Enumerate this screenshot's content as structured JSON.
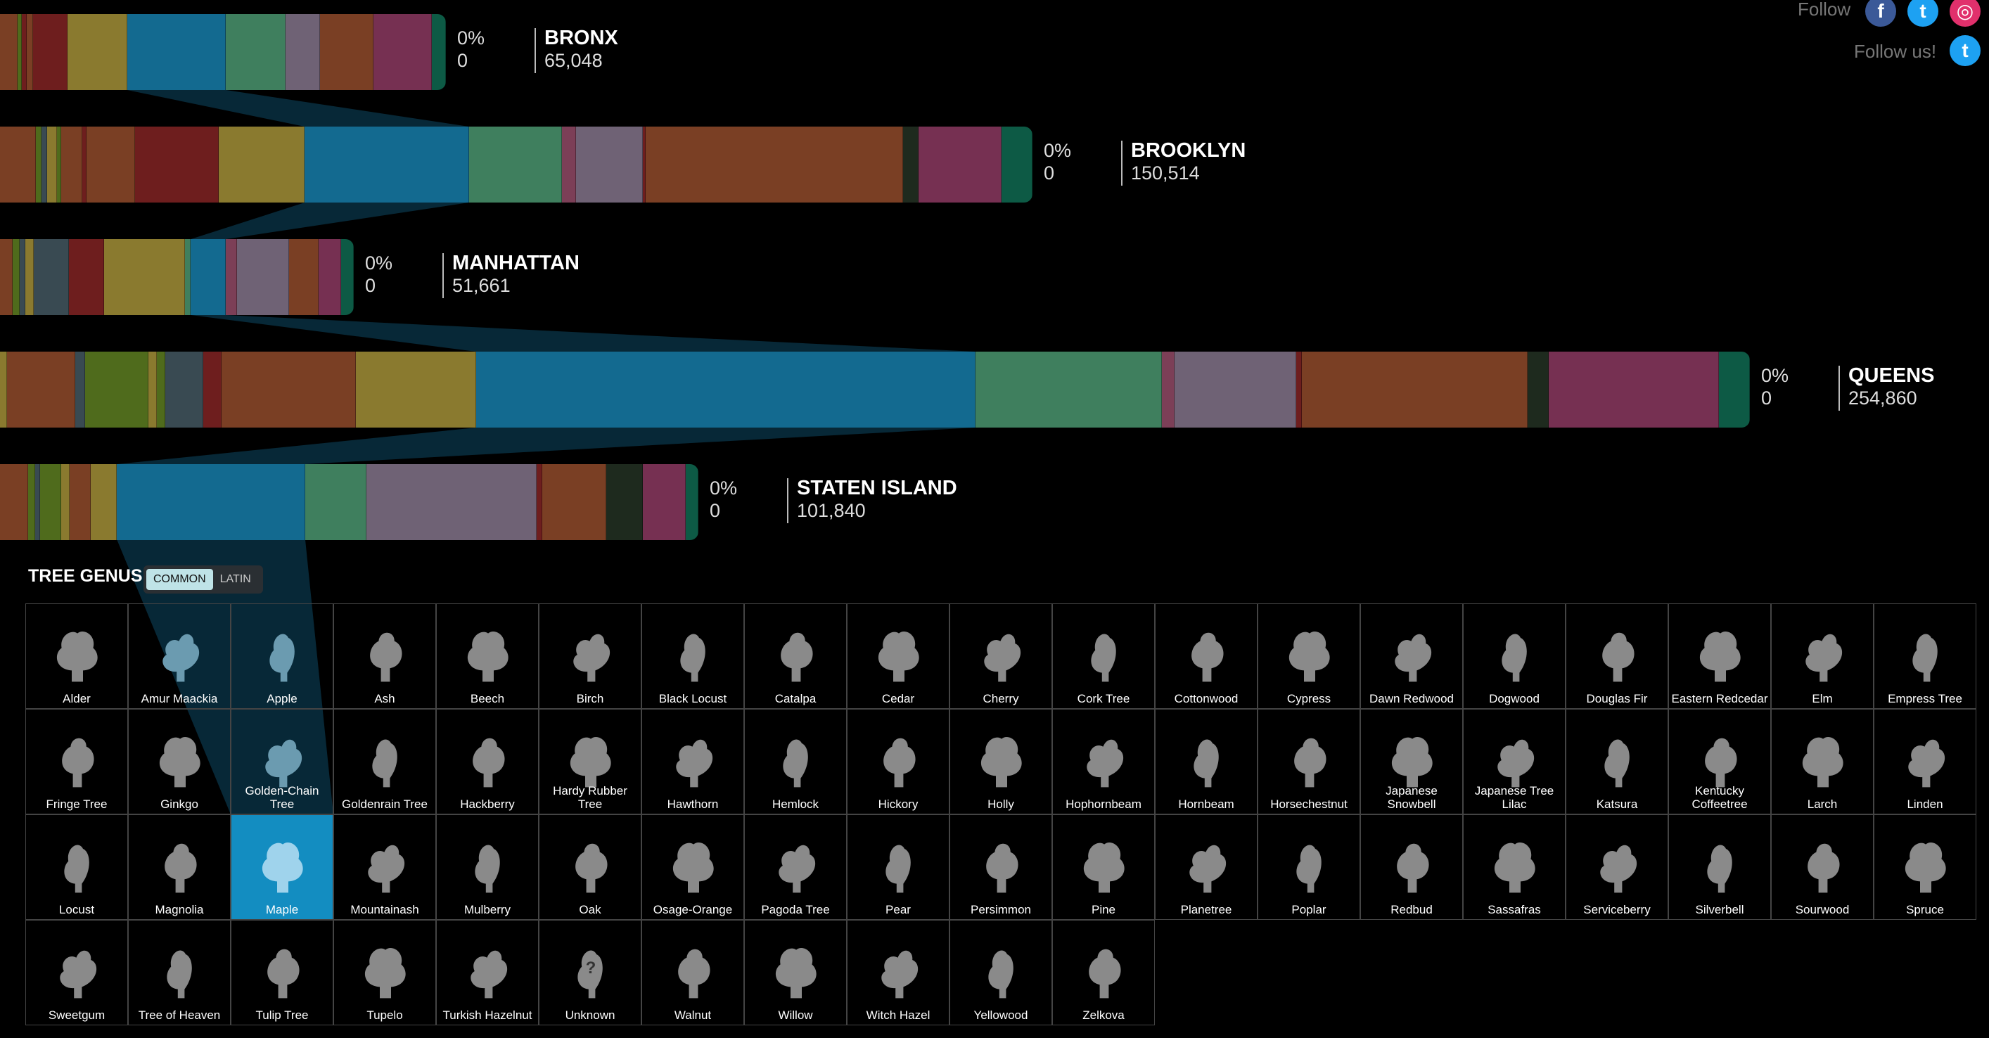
{
  "header": {
    "follow_label": "Follow",
    "follow_us_label": "Follow us!",
    "icons": [
      "facebook-icon",
      "twitter-icon",
      "instagram-icon",
      "twitter-icon"
    ]
  },
  "boroughs": [
    {
      "name": "BRONX",
      "count": "65,048",
      "pct": "0%",
      "zero": "0",
      "width_fraction": 0.255
    },
    {
      "name": "BROOKLYN",
      "count": "150,514",
      "pct": "0%",
      "zero": "0",
      "width_fraction": 0.59
    },
    {
      "name": "MANHATTAN",
      "count": "51,661",
      "pct": "0%",
      "zero": "0",
      "width_fraction": 0.202
    },
    {
      "name": "QUEENS",
      "count": "254,860",
      "pct": "0%",
      "zero": "0",
      "width_fraction": 1.0
    },
    {
      "name": "STATEN ISLAND",
      "count": "101,840",
      "pct": "0%",
      "zero": "0",
      "width_fraction": 0.399
    }
  ],
  "colors": {
    "brown": "#7a3f24",
    "olive": "#8a7a2f",
    "blue": "#136a90",
    "green": "#3f7f5e",
    "mauve": "#6f6275",
    "rust": "#7a3f24",
    "magenta": "#763052",
    "teal": "#0d5a45",
    "red": "#6e1e1e",
    "slate": "#394a52",
    "lime": "#4f6b1c",
    "dark": "#1e2a1e",
    "pink": "#7c3f57",
    "highlight": "#138dc1"
  },
  "genus": {
    "title": "TREE GENUS",
    "toggle": {
      "common": "COMMON",
      "latin": "LATIN",
      "selected": "common"
    },
    "selected": "Maple",
    "trees": [
      "Alder",
      "Amur Maackia",
      "Apple",
      "Ash",
      "Beech",
      "Birch",
      "Black Locust",
      "Catalpa",
      "Cedar",
      "Cherry",
      "Cork Tree",
      "Cottonwood",
      "Cypress",
      "Dawn Redwood",
      "Dogwood",
      "Douglas Fir",
      "Eastern Redcedar",
      "Elm",
      "Empress Tree",
      "Fringe Tree",
      "Ginkgo",
      "Golden-Chain Tree",
      "Goldenrain Tree",
      "Hackberry",
      "Hardy Rubber Tree",
      "Hawthorn",
      "Hemlock",
      "Hickory",
      "Holly",
      "Hophornbeam",
      "Hornbeam",
      "Horsechestnut",
      "Japanese Snowbell",
      "Japanese Tree Lilac",
      "Katsura",
      "Kentucky Coffeetree",
      "Larch",
      "Linden",
      "Locust",
      "Magnolia",
      "Maple",
      "Mountainash",
      "Mulberry",
      "Oak",
      "Osage-Orange",
      "Pagoda Tree",
      "Pear",
      "Persimmon",
      "Pine",
      "Planetree",
      "Poplar",
      "Redbud",
      "Sassafras",
      "Serviceberry",
      "Silverbell",
      "Sourwood",
      "Spruce",
      "Sweetgum",
      "Tree of Heaven",
      "Tulip Tree",
      "Tupelo",
      "Turkish Hazelnut",
      "Unknown",
      "Walnut",
      "Willow",
      "Witch Hazel",
      "Yellowood",
      "Zelkova"
    ],
    "hover_tinted": [
      "Amur Maackia",
      "Apple",
      "Golden-Chain Tree"
    ],
    "unknown_glyph": "?"
  }
}
